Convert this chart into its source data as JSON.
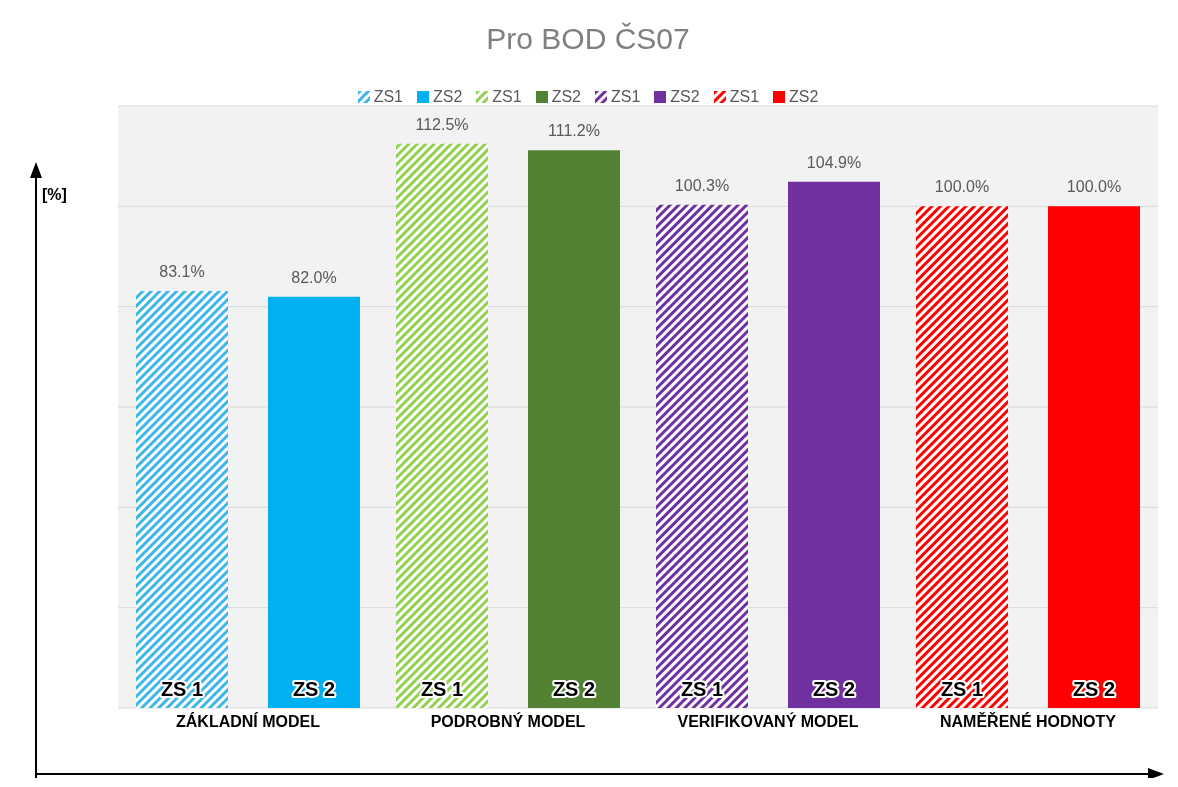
{
  "chart_data": {
    "type": "bar",
    "title": "Pro BOD ČS07",
    "ylabel": "[%]",
    "categories": [
      "ZÁKLADNÍ MODEL",
      "PODROBNÝ MODEL",
      "VERIFIKOVANÝ MODEL",
      "NAMĚŘENÉ HODNOTY"
    ],
    "series": [
      {
        "name": "ZS1",
        "color": "#3fb6e8",
        "values": [
          83.1,
          null,
          null,
          null
        ],
        "value_labels": [
          "83.1%",
          null,
          null,
          null
        ]
      },
      {
        "name": "ZS2",
        "color": "#00b0f0",
        "values": [
          82.0,
          null,
          null,
          null
        ],
        "value_labels": [
          "82.0%",
          null,
          null,
          null
        ]
      },
      {
        "name": "ZS1",
        "color": "#92d050",
        "values": [
          null,
          112.5,
          null,
          null
        ],
        "value_labels": [
          null,
          "112.5%",
          null,
          null
        ]
      },
      {
        "name": "ZS2",
        "color": "#548235",
        "values": [
          null,
          111.2,
          null,
          null
        ],
        "value_labels": [
          null,
          "111.2%",
          null,
          null
        ]
      },
      {
        "name": "ZS1",
        "color": "#7030a0",
        "values": [
          null,
          null,
          100.3,
          null
        ],
        "value_labels": [
          null,
          null,
          "100.3%",
          null
        ]
      },
      {
        "name": "ZS2",
        "color": "#7030a0",
        "values": [
          null,
          null,
          104.9,
          null
        ],
        "value_labels": [
          null,
          null,
          "104.9%",
          null
        ]
      },
      {
        "name": "ZS1",
        "color": "#ff0000",
        "values": [
          null,
          null,
          null,
          100.0
        ],
        "value_labels": [
          null,
          null,
          null,
          "100.0%"
        ]
      },
      {
        "name": "ZS2",
        "color": "#ff0000",
        "values": [
          null,
          null,
          null,
          100.0
        ],
        "value_labels": [
          null,
          null,
          null,
          "100.0%"
        ]
      }
    ],
    "annotations": [
      "ZS 1",
      "ZS 2",
      "ZS 1",
      "ZS 2",
      "ZS 1",
      "ZS 2",
      "ZS 1",
      "ZS 2"
    ],
    "ylim": [
      0,
      120
    ],
    "yticks": [
      {
        "value": 0,
        "label": null
      },
      {
        "value": 20,
        "label": null
      },
      {
        "value": 40,
        "label": null
      },
      {
        "value": 60,
        "label": null
      },
      {
        "value": 80,
        "label": null
      },
      {
        "value": 100,
        "label": null
      },
      {
        "value": 120,
        "label": null
      }
    ],
    "grid": "y",
    "tick_labels": "x",
    "legend": "top"
  }
}
